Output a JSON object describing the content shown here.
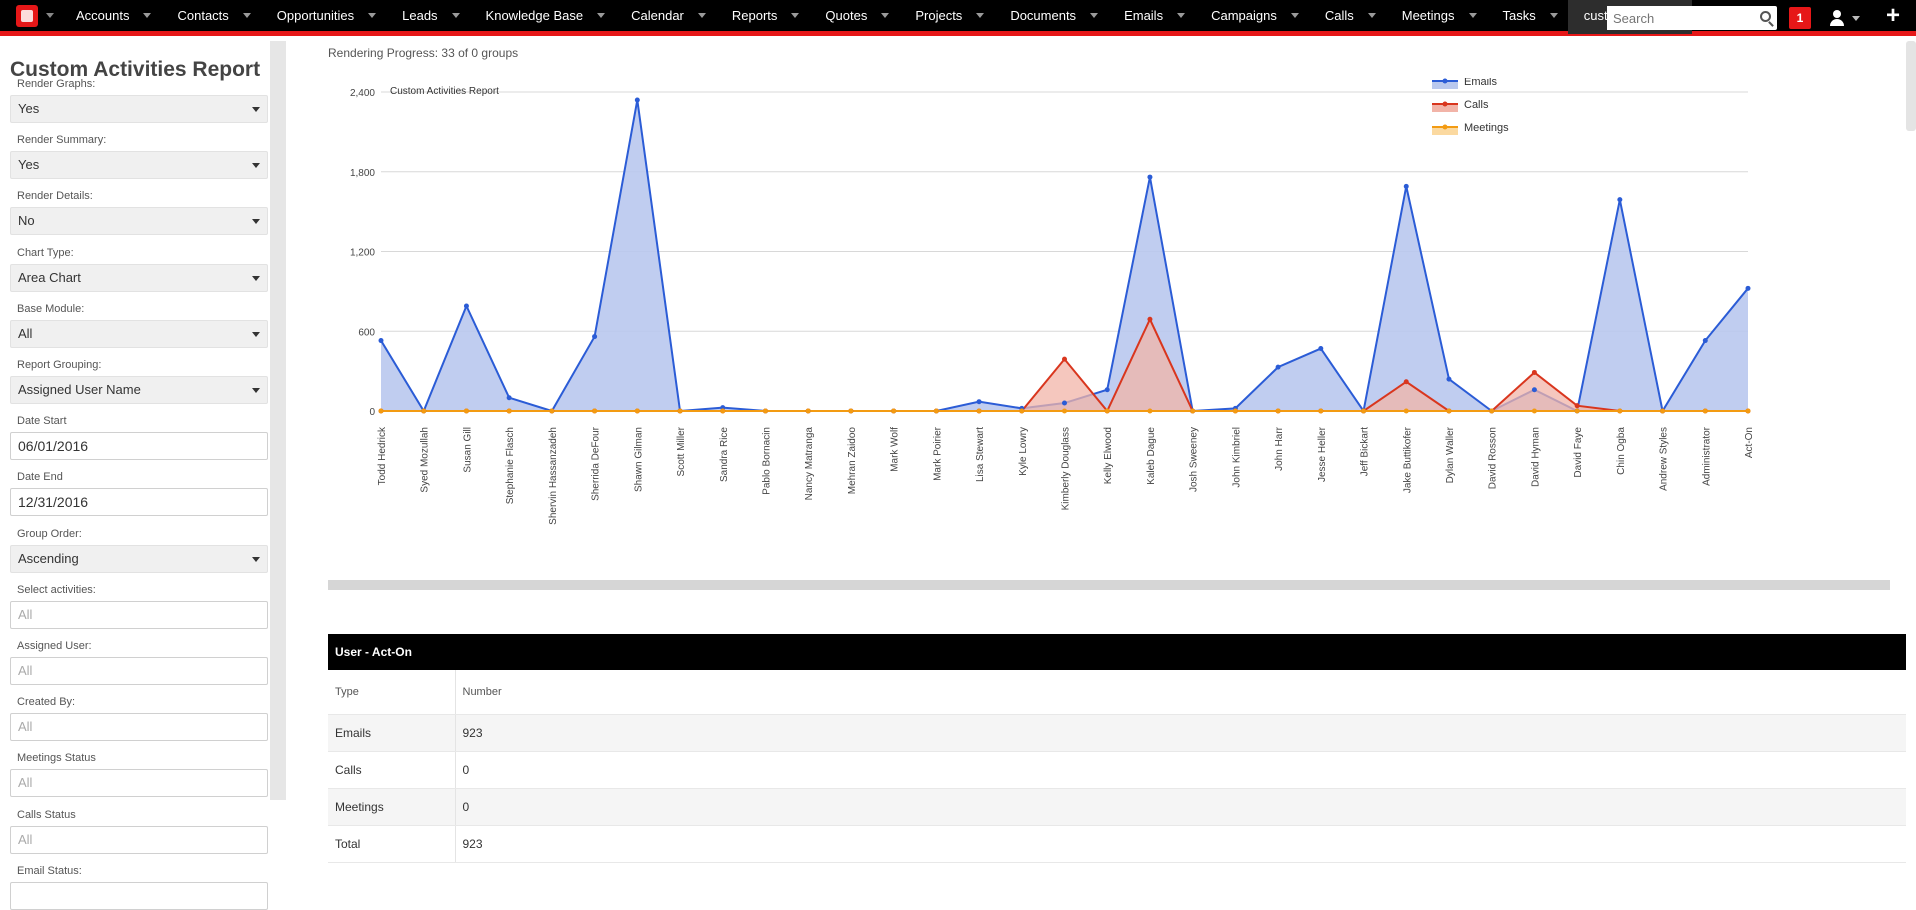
{
  "nav": {
    "items": [
      "Accounts",
      "Contacts",
      "Opportunities",
      "Leads",
      "Knowledge Base",
      "Calendar",
      "Reports",
      "Quotes",
      "Projects",
      "Documents",
      "Emails",
      "Campaigns",
      "Calls",
      "Meetings",
      "Tasks",
      "customreport"
    ],
    "active": "customreport",
    "search_placeholder": "Search",
    "notification_count": "1",
    "plus": "+",
    "more": "⌄"
  },
  "sidebar": {
    "title": "Custom Activities Report",
    "fields": [
      {
        "label": "Render Graphs:",
        "value": "Yes",
        "kind": "select"
      },
      {
        "label": "Render Summary:",
        "value": "Yes",
        "kind": "select"
      },
      {
        "label": "Render Details:",
        "value": "No",
        "kind": "select"
      },
      {
        "label": "Chart Type:",
        "value": "Area Chart",
        "kind": "select"
      },
      {
        "label": "Base Module:",
        "value": "All",
        "kind": "select"
      },
      {
        "label": "Report Grouping:",
        "value": "Assigned User Name",
        "kind": "select"
      },
      {
        "label": "Date Start",
        "value": "06/01/2016",
        "kind": "input"
      },
      {
        "label": "Date End",
        "value": "12/31/2016",
        "kind": "input"
      },
      {
        "label": "Group Order:",
        "value": "Ascending",
        "kind": "select"
      },
      {
        "label": "Select activities:",
        "value": "All",
        "kind": "placeholder"
      },
      {
        "label": "Assigned User:",
        "value": "All",
        "kind": "placeholder"
      },
      {
        "label": "Created By:",
        "value": "All",
        "kind": "placeholder"
      },
      {
        "label": "Meetings Status",
        "value": "All",
        "kind": "placeholder"
      },
      {
        "label": "Calls Status",
        "value": "All",
        "kind": "placeholder"
      },
      {
        "label": "Email Status:",
        "value": "",
        "kind": "placeholder"
      }
    ]
  },
  "progress_text": "Rendering Progress: 33 of 0 groups",
  "chart_data": {
    "type": "area",
    "title": "Custom Activities Report",
    "xlabel": "",
    "ylabel": "",
    "ylim": [
      0,
      2400
    ],
    "yticks": [
      0,
      600,
      1200,
      1800,
      2400
    ],
    "ytick_labels": [
      "0",
      "600",
      "1,200",
      "1,800",
      "2,400"
    ],
    "grid": true,
    "legend_position": "top-right",
    "categories": [
      "Todd Hedrick",
      "Syed Mozullah",
      "Susan Gill",
      "Stephanie Flasch",
      "Shervin Hassanzadeh",
      "Sherrida DeFour",
      "Shawn Gilman",
      "Scott Miller",
      "Sandra Rice",
      "Pablo Bornacin",
      "Nancy Matranga",
      "Mehran Zaidoo",
      "Mark Wolf",
      "Mark Poirier",
      "Lisa Stewart",
      "Kyle Lowry",
      "Kimberly Douglass",
      "Kelly Elwood",
      "Kaleb Dague",
      "Josh Sweeney",
      "John Kimbriel",
      "John Harr",
      "Jesse Heller",
      "Jeff Bickart",
      "Jake Buttikofer",
      "Dylan Waller",
      "David Rosson",
      "David Hyman",
      "David Faye",
      "Chin Ogba",
      "Andrew Styles",
      "Administrator",
      "Act-On"
    ],
    "series": [
      {
        "name": "Emails",
        "color": "#2b5cd6",
        "fill": "#b9c8ee",
        "values": [
          530,
          0,
          790,
          100,
          0,
          560,
          2340,
          0,
          25,
          0,
          0,
          0,
          0,
          0,
          70,
          20,
          60,
          160,
          1760,
          0,
          20,
          330,
          470,
          0,
          1690,
          240,
          0,
          160,
          0,
          1590,
          0,
          530,
          923
        ]
      },
      {
        "name": "Calls",
        "color": "#d9361e",
        "fill": "#f2b4a8",
        "values": [
          0,
          0,
          0,
          0,
          0,
          0,
          0,
          0,
          0,
          0,
          0,
          0,
          0,
          0,
          0,
          0,
          390,
          0,
          690,
          0,
          0,
          0,
          0,
          0,
          220,
          0,
          0,
          290,
          40,
          0,
          0,
          0,
          0
        ]
      },
      {
        "name": "Meetings",
        "color": "#f39b12",
        "fill": "#fbd9a0",
        "values": [
          0,
          0,
          0,
          0,
          0,
          0,
          0,
          0,
          0,
          0,
          0,
          0,
          0,
          0,
          0,
          0,
          0,
          0,
          0,
          0,
          0,
          0,
          0,
          0,
          0,
          0,
          0,
          0,
          0,
          0,
          0,
          0,
          0
        ]
      }
    ]
  },
  "summary": {
    "heading": "User - Act-On",
    "columns": [
      "Type",
      "Number"
    ],
    "rows": [
      [
        "Emails",
        "923"
      ],
      [
        "Calls",
        "0"
      ],
      [
        "Meetings",
        "0"
      ],
      [
        "Total",
        "923"
      ]
    ]
  }
}
